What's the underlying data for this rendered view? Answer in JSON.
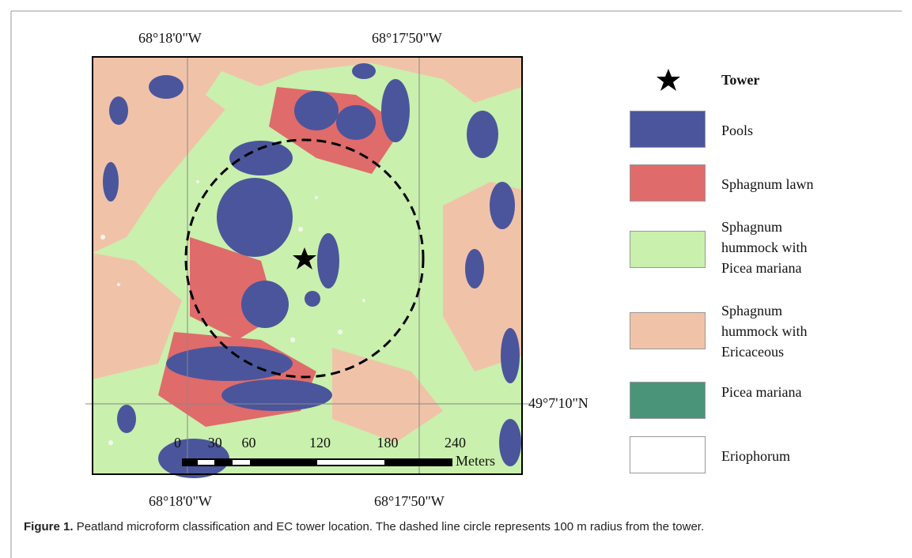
{
  "map": {
    "top_labels": [
      "68°18'0\"W",
      "68°17'50\"W"
    ],
    "bottom_labels": [
      "68°18'0\"W",
      "68°17'50\"W"
    ],
    "lat_label": "49°7'10\"N",
    "scale_ticks": [
      0,
      30,
      60,
      120,
      180,
      240
    ],
    "scale_unit": "Meters"
  },
  "legend": [
    {
      "label": "Tower"
    },
    {
      "label": "Pools",
      "color": "#4b559c"
    },
    {
      "label": "Sphagnum lawn",
      "color": "#e06b6b"
    },
    {
      "label": "Sphagnum hummock with Picea mariana",
      "color": "#c9f0ad"
    },
    {
      "label": "Sphagnum hummock with Ericaceous",
      "color": "#f0c3a9"
    },
    {
      "label": "Picea mariana",
      "color": "#4a957a"
    },
    {
      "label": "Eriophorum",
      "color": "#ffffff"
    }
  ],
  "caption": {
    "label": "Figure 1.",
    "text": "Peatland microform classification and EC tower location. The dashed line circle represents 100 m radius from the tower."
  }
}
